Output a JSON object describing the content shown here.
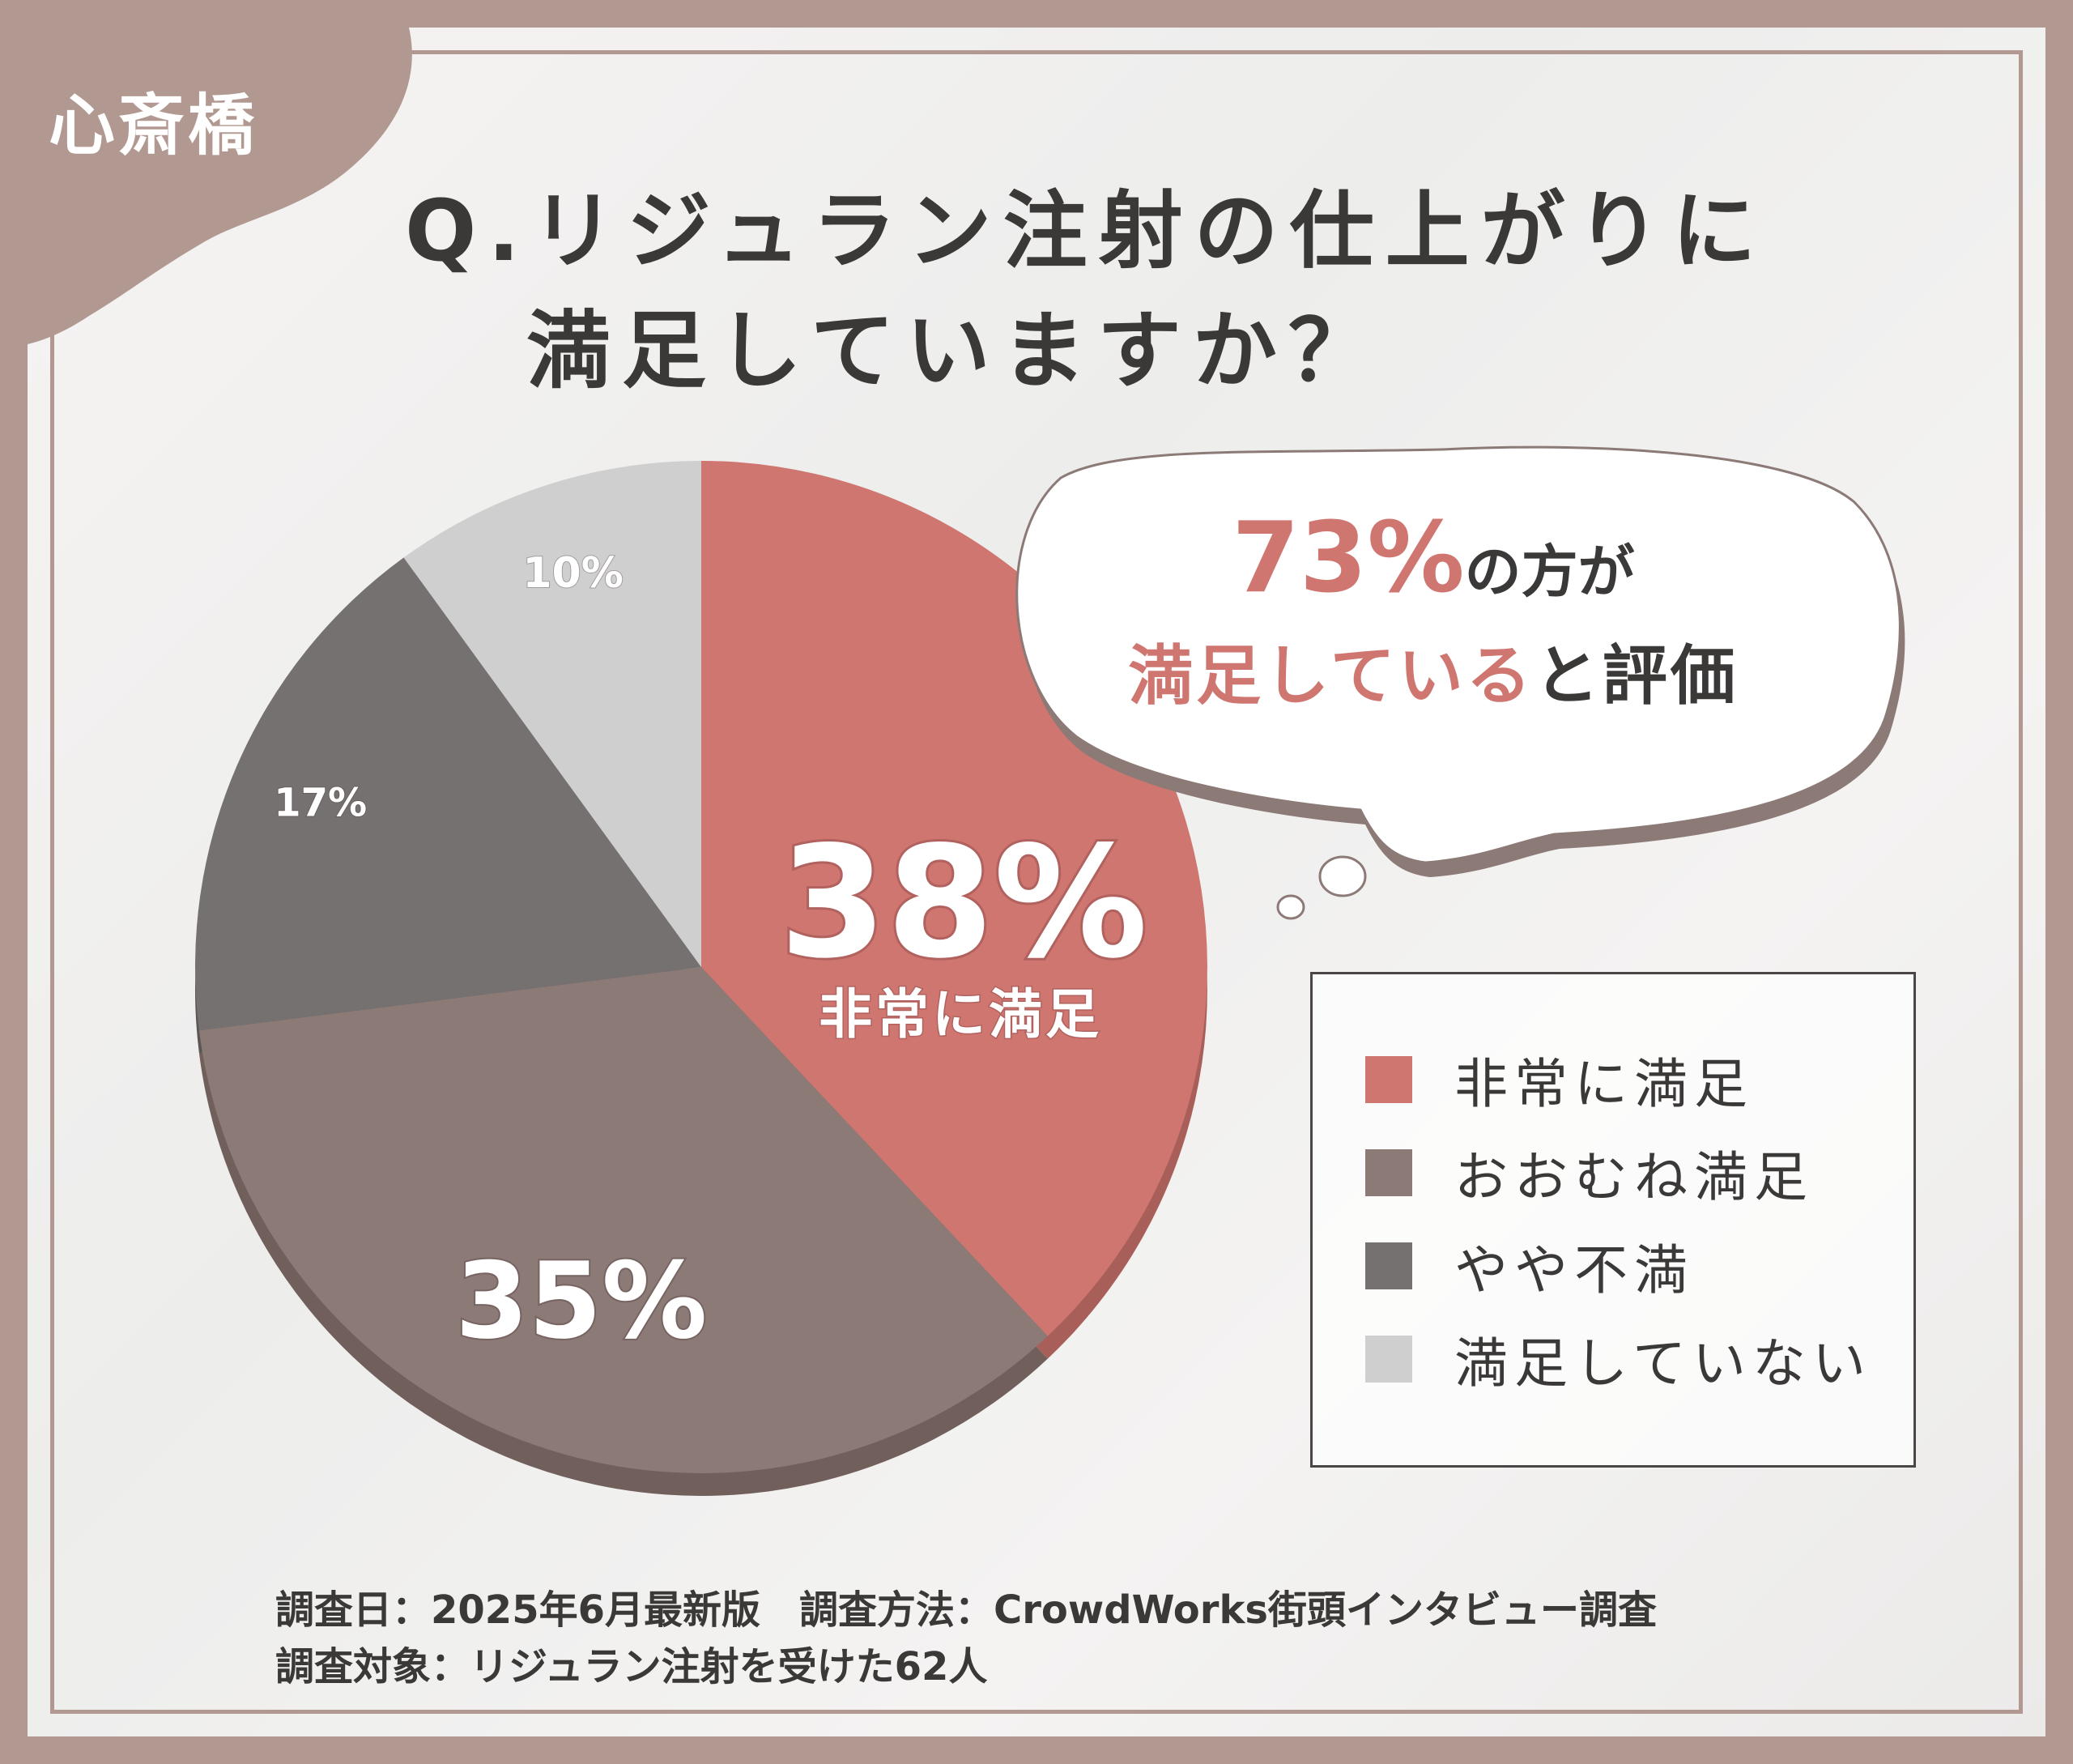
{
  "header": {
    "location_label": "心斎橋",
    "question_line1": "Q.リジュラン注射の仕上がりに",
    "question_line2": "満足していますか？"
  },
  "callout": {
    "percent": "73%",
    "text_after_percent": "の方が",
    "highlight": "満足している",
    "text_end": "と評価"
  },
  "callout_labels": {
    "main_percent": "38%",
    "main_category": "非常に満足"
  },
  "legend": [
    {
      "label": "非常に満足",
      "color": "#cf7670"
    },
    {
      "label": "おおむね満足",
      "color": "#8c7a77"
    },
    {
      "label": "やや不満",
      "color": "#767171"
    },
    {
      "label": "満足していない",
      "color": "#d0cfcf"
    }
  ],
  "footer": {
    "line1": "調査日：2025年6月最新版　調査方法：CrowdWorks街頭インタビュー調査",
    "line2": "調査対象：リジュラン注射を受けた62人"
  },
  "chart_data": {
    "type": "pie",
    "categories": [
      "非常に満足",
      "おおむね満足",
      "やや不満",
      "満足していない"
    ],
    "values": [
      38,
      35,
      17,
      10
    ],
    "value_labels": [
      "",
      "35%",
      "17%",
      "10%"
    ],
    "colors": [
      "#cf7670",
      "#8c7a77",
      "#767171",
      "#d0cfcf"
    ],
    "shadow_colors": [
      "#a85f5a",
      "#705f5b",
      "#5a5656",
      "#b8b7b7"
    ],
    "legend_position": "right"
  }
}
